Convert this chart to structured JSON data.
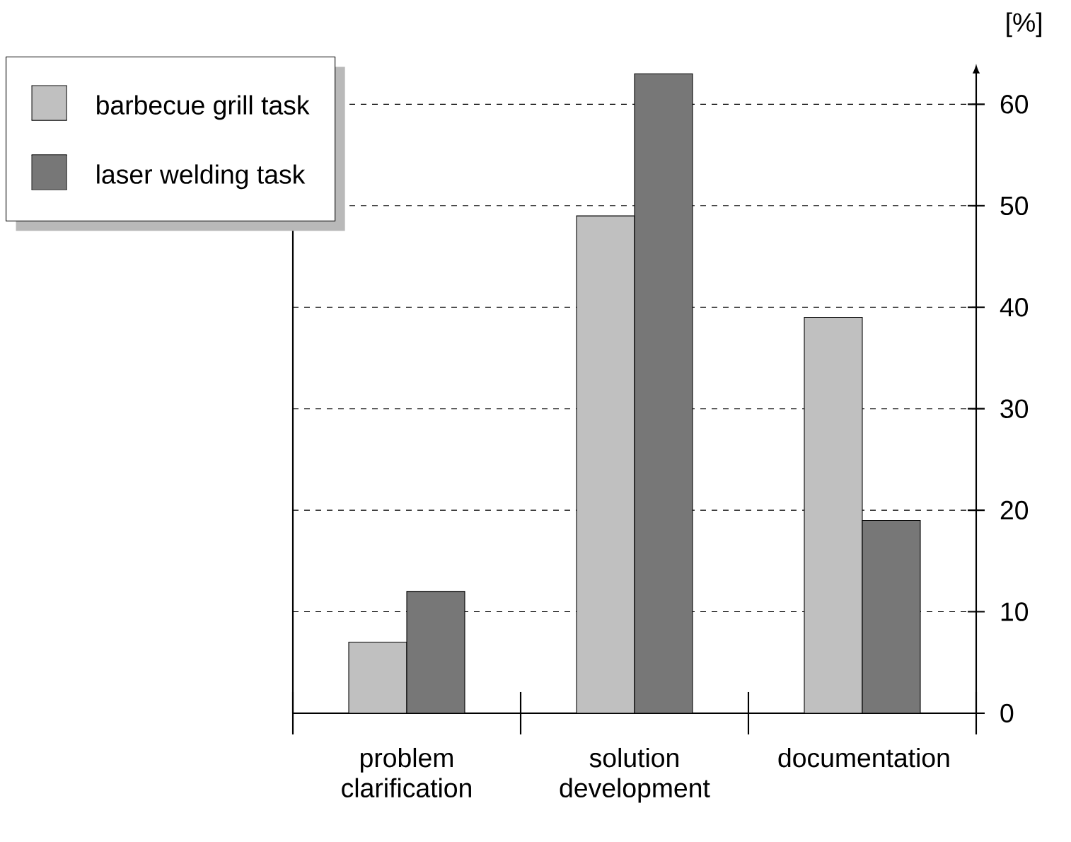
{
  "chart_data": {
    "type": "bar",
    "ylabel": "[%]",
    "categories": [
      "problem clarification",
      "solution development",
      "documentation"
    ],
    "series": [
      {
        "name": "barbecue grill task",
        "color": "#c0c0c0",
        "values": [
          7,
          49,
          39
        ]
      },
      {
        "name": "laser welding task",
        "color": "#777777",
        "values": [
          12,
          63,
          19
        ]
      }
    ],
    "ylim": [
      0,
      64
    ],
    "yticks": [
      0,
      10,
      20,
      30,
      40,
      50,
      60
    ],
    "grid": "y",
    "line_style": "dashed",
    "legend": "top left"
  }
}
